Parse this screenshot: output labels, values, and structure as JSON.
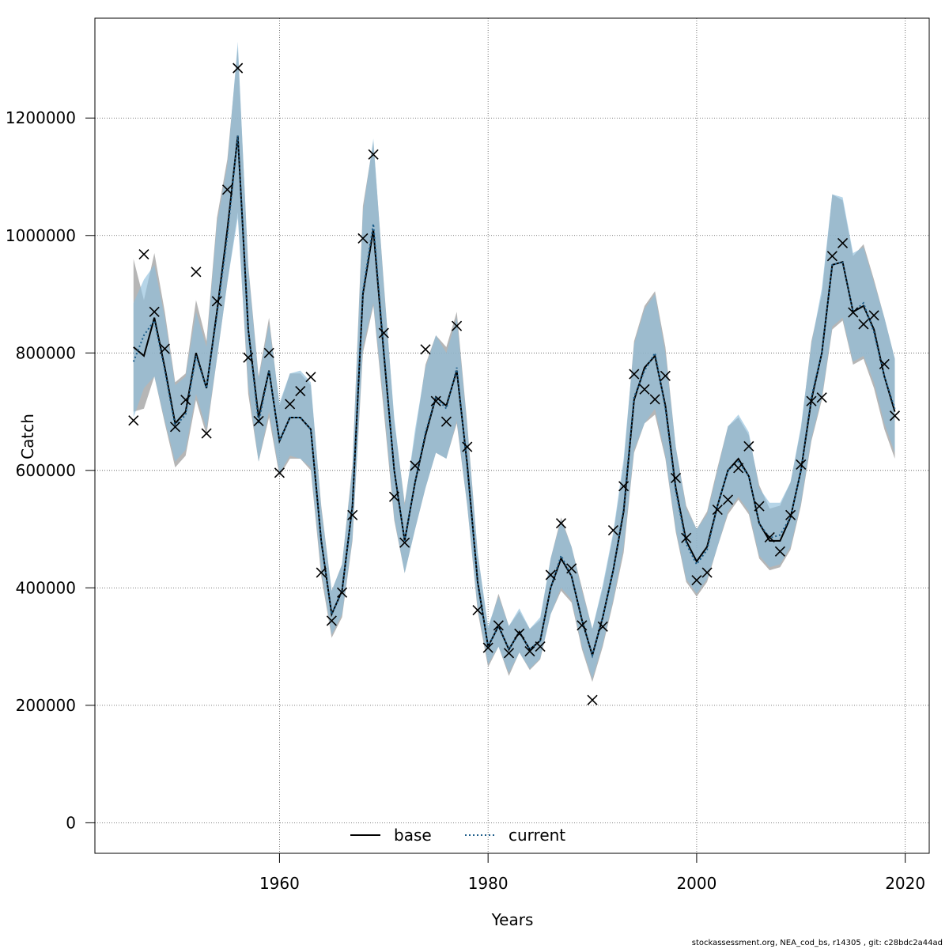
{
  "footer": "stockassessment.org, NEA_cod_bs, r14305 , git: c28bdc2a44ad",
  "chart_data": {
    "type": "line",
    "title": "",
    "xlabel": "Years",
    "ylabel": "Catch",
    "xlim": [
      1942.3,
      2022.3
    ],
    "ylim": [
      -52000,
      1370000
    ],
    "xticks": [
      1960,
      1980,
      2000,
      2020
    ],
    "yticks": [
      0,
      200000,
      400000,
      600000,
      800000,
      1000000,
      1200000
    ],
    "grid": true,
    "legend": {
      "position": "bottom",
      "entries": [
        {
          "label": "base",
          "style": "solid",
          "color": "#000000"
        },
        {
          "label": "current",
          "style": "dotted",
          "color": "#1f5f8b"
        }
      ]
    },
    "colors": {
      "base_band": "#9e9e9e",
      "current_band": "#8fbfdc",
      "current_line": "#1f5f8b",
      "observed": "#000000"
    },
    "x": [
      1946,
      1947,
      1948,
      1949,
      1950,
      1951,
      1952,
      1953,
      1954,
      1955,
      1956,
      1957,
      1958,
      1959,
      1960,
      1961,
      1962,
      1963,
      1964,
      1965,
      1966,
      1967,
      1968,
      1969,
      1970,
      1971,
      1972,
      1973,
      1974,
      1975,
      1976,
      1977,
      1978,
      1979,
      1980,
      1981,
      1982,
      1983,
      1984,
      1985,
      1986,
      1987,
      1988,
      1989,
      1990,
      1991,
      1992,
      1993,
      1994,
      1995,
      1996,
      1997,
      1998,
      1999,
      2000,
      2001,
      2002,
      2003,
      2004,
      2005,
      2006,
      2007,
      2008,
      2009,
      2010,
      2011,
      2012,
      2013,
      2014,
      2015,
      2016,
      2017,
      2018,
      2019
    ],
    "series": [
      {
        "name": "base",
        "values": [
          810000,
          795000,
          860000,
          775000,
          680000,
          700000,
          800000,
          740000,
          870000,
          1010000,
          1170000,
          840000,
          690000,
          770000,
          650000,
          690000,
          690000,
          670000,
          480000,
          355000,
          395000,
          540000,
          900000,
          1010000,
          800000,
          600000,
          480000,
          580000,
          660000,
          725000,
          710000,
          770000,
          610000,
          410000,
          300000,
          335000,
          295000,
          325000,
          295000,
          310000,
          400000,
          450000,
          420000,
          345000,
          285000,
          350000,
          430000,
          530000,
          720000,
          775000,
          795000,
          710000,
          570000,
          480000,
          445000,
          470000,
          540000,
          600000,
          620000,
          590000,
          510000,
          480000,
          480000,
          520000,
          600000,
          720000,
          800000,
          950000,
          955000,
          870000,
          880000,
          840000,
          760000,
          700000
        ],
        "lower": [
          700000,
          705000,
          760000,
          680000,
          605000,
          625000,
          720000,
          660000,
          790000,
          920000,
          1040000,
          730000,
          615000,
          690000,
          590000,
          620000,
          620000,
          600000,
          420000,
          315000,
          350000,
          480000,
          800000,
          880000,
          700000,
          515000,
          425000,
          500000,
          570000,
          630000,
          620000,
          680000,
          540000,
          360000,
          265000,
          300000,
          250000,
          290000,
          260000,
          278000,
          355000,
          395000,
          375000,
          295000,
          240000,
          300000,
          375000,
          460000,
          630000,
          680000,
          695000,
          620000,
          495000,
          410000,
          385000,
          410000,
          470000,
          525000,
          550000,
          525000,
          450000,
          430000,
          435000,
          465000,
          540000,
          650000,
          720000,
          840000,
          855000,
          780000,
          790000,
          740000,
          670000,
          620000
        ],
        "upper": [
          960000,
          890000,
          970000,
          870000,
          750000,
          765000,
          890000,
          820000,
          1030000,
          1130000,
          1320000,
          950000,
          760000,
          860000,
          710000,
          765000,
          765000,
          745000,
          540000,
          395000,
          440000,
          610000,
          1050000,
          1160000,
          920000,
          685000,
          545000,
          660000,
          780000,
          830000,
          810000,
          870000,
          680000,
          460000,
          330000,
          390000,
          335000,
          360000,
          330000,
          345000,
          450000,
          520000,
          470000,
          400000,
          330000,
          400000,
          490000,
          610000,
          820000,
          880000,
          905000,
          810000,
          640000,
          540000,
          500000,
          530000,
          605000,
          675000,
          690000,
          660000,
          575000,
          535000,
          540000,
          580000,
          670000,
          820000,
          900000,
          1070000,
          1060000,
          965000,
          985000,
          925000,
          860000,
          790000
        ]
      },
      {
        "name": "current",
        "values": [
          785000,
          830000,
          855000,
          770000,
          675000,
          695000,
          795000,
          740000,
          865000,
          1000000,
          1170000,
          840000,
          680000,
          770000,
          650000,
          690000,
          690000,
          670000,
          480000,
          355000,
          395000,
          540000,
          905000,
          1020000,
          805000,
          600000,
          480000,
          580000,
          665000,
          725000,
          705000,
          775000,
          605000,
          410000,
          300000,
          335000,
          295000,
          325000,
          295000,
          310000,
          400000,
          455000,
          420000,
          345000,
          285000,
          350000,
          430000,
          535000,
          725000,
          770000,
          800000,
          705000,
          565000,
          475000,
          440000,
          465000,
          540000,
          600000,
          615000,
          590000,
          510000,
          485000,
          490000,
          520000,
          600000,
          725000,
          800000,
          950000,
          955000,
          870000,
          885000,
          835000,
          760000,
          705000
        ],
        "lower": [
          690000,
          740000,
          760000,
          685000,
          615000,
          635000,
          730000,
          670000,
          790000,
          920000,
          1030000,
          745000,
          615000,
          700000,
          595000,
          625000,
          620000,
          605000,
          430000,
          320000,
          355000,
          485000,
          810000,
          885000,
          715000,
          520000,
          425000,
          500000,
          570000,
          630000,
          620000,
          685000,
          540000,
          365000,
          270000,
          300000,
          255000,
          290000,
          262000,
          280000,
          355000,
          400000,
          380000,
          300000,
          245000,
          305000,
          380000,
          470000,
          635000,
          680000,
          705000,
          625000,
          500000,
          415000,
          390000,
          415000,
          470000,
          530000,
          555000,
          530000,
          455000,
          435000,
          440000,
          470000,
          545000,
          655000,
          725000,
          845000,
          860000,
          785000,
          795000,
          750000,
          680000,
          630000
        ],
        "upper": [
          885000,
          925000,
          950000,
          860000,
          745000,
          760000,
          870000,
          810000,
          1020000,
          1120000,
          1330000,
          945000,
          755000,
          850000,
          715000,
          765000,
          770000,
          750000,
          535000,
          395000,
          440000,
          605000,
          1040000,
          1165000,
          915000,
          690000,
          540000,
          670000,
          775000,
          830000,
          800000,
          860000,
          675000,
          460000,
          335000,
          385000,
          335000,
          365000,
          330000,
          350000,
          450000,
          515000,
          470000,
          395000,
          330000,
          405000,
          495000,
          620000,
          815000,
          875000,
          900000,
          800000,
          640000,
          535000,
          500000,
          525000,
          600000,
          675000,
          695000,
          665000,
          570000,
          545000,
          545000,
          580000,
          675000,
          815000,
          910000,
          1070000,
          1065000,
          970000,
          980000,
          920000,
          860000,
          790000
        ]
      }
    ],
    "observed": [
      685000,
      968000,
      870000,
      807000,
      674000,
      720000,
      938000,
      663000,
      888000,
      1078000,
      1285000,
      792000,
      684000,
      800000,
      596000,
      713000,
      735000,
      759000,
      426000,
      344000,
      392000,
      524000,
      995000,
      1138000,
      834000,
      555000,
      477000,
      608000,
      806000,
      718000,
      683000,
      846000,
      640000,
      362000,
      298000,
      336000,
      289000,
      322000,
      292000,
      300000,
      422000,
      510000,
      433000,
      336000,
      209000,
      334000,
      498000,
      573000,
      764000,
      738000,
      721000,
      761000,
      587000,
      485000,
      413000,
      426000,
      533000,
      550000,
      604000,
      641000,
      539000,
      486000,
      462000,
      524000,
      610000,
      718000,
      724000,
      965000,
      987000,
      869000,
      849000,
      864000,
      781000,
      693000
    ]
  }
}
